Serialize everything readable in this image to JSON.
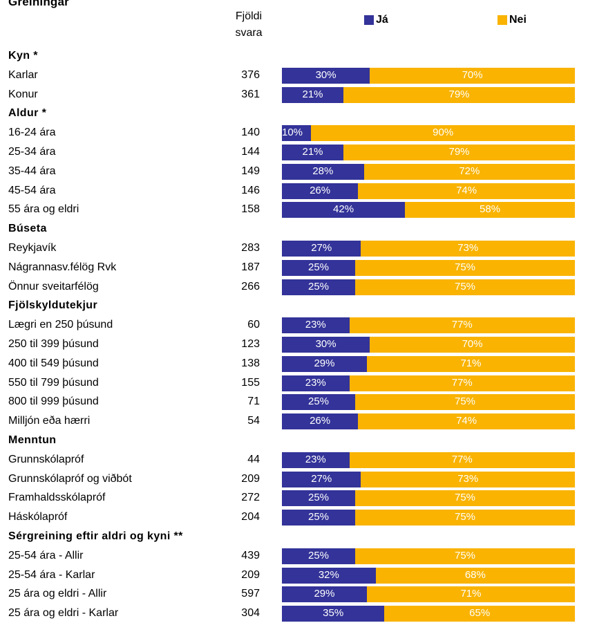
{
  "chart_data": {
    "type": "bar",
    "orientation": "horizontal",
    "stacked": "100%",
    "title": "Greiningar",
    "count_header": [
      "Fjöldi",
      "svara"
    ],
    "series_names": [
      "Já",
      "Nei"
    ],
    "colors": {
      "ja": "#333399",
      "nei": "#f9b300"
    },
    "groups": [
      {
        "name": "Kyn *",
        "rows": [
          {
            "label": "Karlar",
            "n": "376",
            "ja": 30,
            "nei": 70
          },
          {
            "label": "Konur",
            "n": "361",
            "ja": 21,
            "nei": 79
          }
        ]
      },
      {
        "name": "Aldur *",
        "rows": [
          {
            "label": "16-24 ára",
            "n": "140",
            "ja": 10,
            "nei": 90
          },
          {
            "label": "25-34 ára",
            "n": "144",
            "ja": 21,
            "nei": 79
          },
          {
            "label": "35-44 ára",
            "n": "149",
            "ja": 28,
            "nei": 72
          },
          {
            "label": "45-54 ára",
            "n": "146",
            "ja": 26,
            "nei": 74
          },
          {
            "label": "55 ára og eldri",
            "n": "158",
            "ja": 42,
            "nei": 58
          }
        ]
      },
      {
        "name": "Búseta",
        "rows": [
          {
            "label": "Reykjavík",
            "n": "283",
            "ja": 27,
            "nei": 73
          },
          {
            "label": "Nágrannasv.félög Rvk",
            "n": "187",
            "ja": 25,
            "nei": 75
          },
          {
            "label": "Önnur sveitarfélög",
            "n": "266",
            "ja": 25,
            "nei": 75
          }
        ]
      },
      {
        "name": "Fjölskyldutekjur",
        "rows": [
          {
            "label": "Lægri en 250 þúsund",
            "n": "60",
            "ja": 23,
            "nei": 77
          },
          {
            "label": "250 til 399 þúsund",
            "n": "123",
            "ja": 30,
            "nei": 70
          },
          {
            "label": "400 til 549 þúsund",
            "n": "138",
            "ja": 29,
            "nei": 71
          },
          {
            "label": "550 til 799 þúsund",
            "n": "155",
            "ja": 23,
            "nei": 77
          },
          {
            "label": "800 til 999 þúsund",
            "n": "71",
            "ja": 25,
            "nei": 75
          },
          {
            "label": "Milljón eða hærri",
            "n": "54",
            "ja": 26,
            "nei": 74
          }
        ]
      },
      {
        "name": "Menntun",
        "rows": [
          {
            "label": "Grunnskólapróf",
            "n": "44",
            "ja": 23,
            "nei": 77
          },
          {
            "label": "Grunnskólapróf og viðbót",
            "n": "209",
            "ja": 27,
            "nei": 73
          },
          {
            "label": "Framhaldsskólapróf",
            "n": "272",
            "ja": 25,
            "nei": 75
          },
          {
            "label": "Háskólapróf",
            "n": "204",
            "ja": 25,
            "nei": 75
          }
        ]
      },
      {
        "name": "Sérgreining eftir aldri og kyni **",
        "rows": [
          {
            "label": "25-54 ára - Allir",
            "n": "439",
            "ja": 25,
            "nei": 75
          },
          {
            "label": "25-54 ára - Karlar",
            "n": "209",
            "ja": 32,
            "nei": 68
          },
          {
            "label": "25 ára og eldri - Allir",
            "n": "597",
            "ja": 29,
            "nei": 71
          },
          {
            "label": "25 ára og eldri - Karlar",
            "n": "304",
            "ja": 35,
            "nei": 65
          }
        ]
      }
    ]
  }
}
